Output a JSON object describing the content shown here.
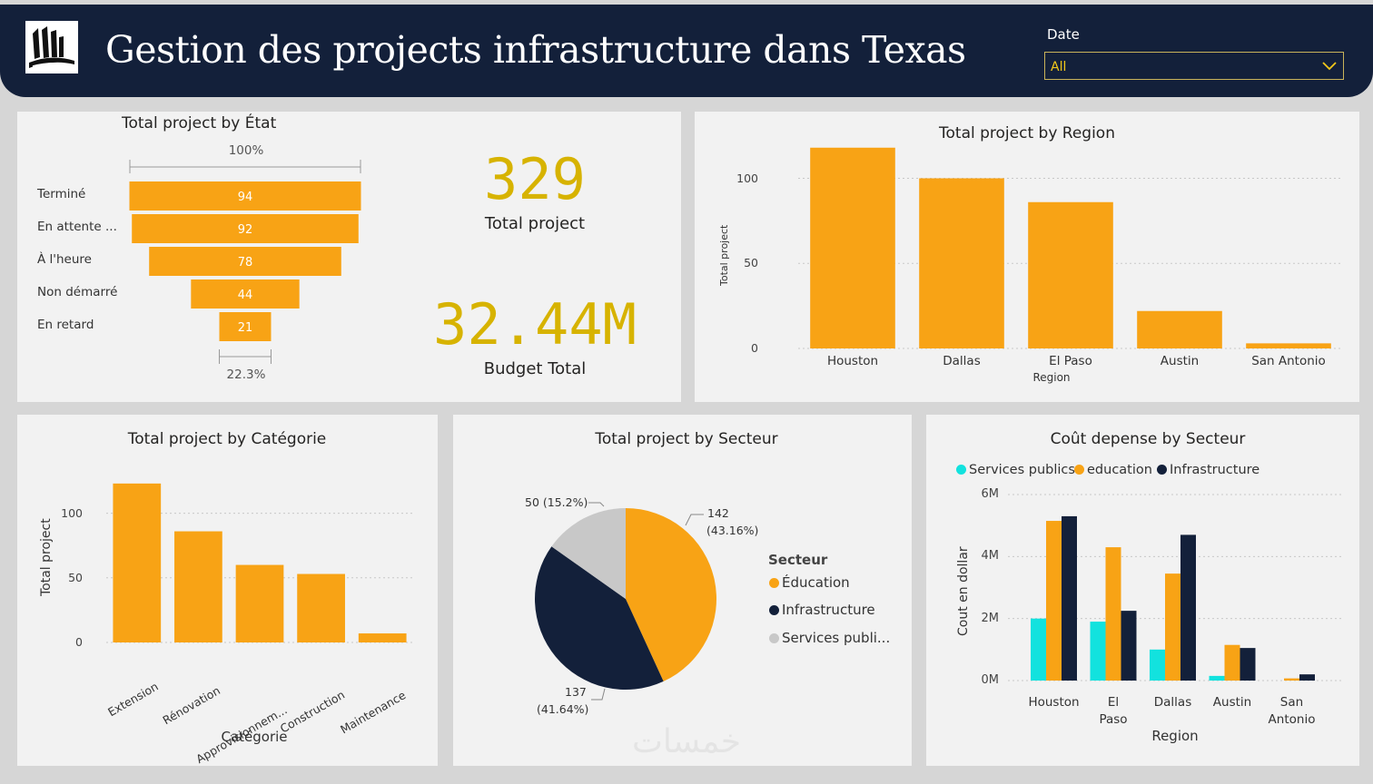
{
  "header": {
    "title": "Gestion des projects infrastructure dans Texas",
    "date_label": "Date",
    "date_value": "All"
  },
  "colors": {
    "orange": "#f8a315",
    "navy": "#13203a",
    "cyan": "#12e2de",
    "grey": "#c8c8c8",
    "kpi": "#d7b300"
  },
  "kpi": {
    "total_value": "329",
    "total_label": "Total project",
    "budget_value": "32.44M",
    "budget_label": "Budget Total"
  },
  "chart_data": [
    {
      "id": "etat",
      "type": "funnel",
      "title": "Total project by État",
      "top_percent": "100%",
      "bottom_percent": "22.3%",
      "categories": [
        "Terminé",
        "En attente ...",
        "À l'heure",
        "Non démarré",
        "En retard"
      ],
      "values": [
        94,
        92,
        78,
        44,
        21
      ]
    },
    {
      "id": "region",
      "type": "bar",
      "title": "Total project by Region",
      "xlabel": "Region",
      "ylabel": "Total project",
      "categories": [
        "Houston",
        "Dallas",
        "El Paso",
        "Austin",
        "San Antonio"
      ],
      "values": [
        118,
        100,
        86,
        22,
        3
      ],
      "yticks": [
        "0",
        "50",
        "100"
      ],
      "ylim": [
        0,
        120
      ]
    },
    {
      "id": "categorie",
      "type": "bar",
      "title": "Total project by Catégorie",
      "xlabel": "Catégorie",
      "ylabel": "Total project",
      "categories": [
        "Extension",
        "Rénovation",
        "Approvisionnem...",
        "Construction",
        "Maintenance"
      ],
      "values": [
        123,
        86,
        60,
        53,
        7
      ],
      "yticks": [
        "0",
        "50",
        "100"
      ],
      "ylim": [
        0,
        125
      ]
    },
    {
      "id": "secteur",
      "type": "pie",
      "title": "Total project by Secteur",
      "legend_title": "Secteur",
      "legend_items": [
        "Éducation",
        "Infrastructure",
        "Services publi..."
      ],
      "slices": [
        {
          "name": "Éducation",
          "value": 142,
          "label_value": "142",
          "label_pct": "(43.16%)"
        },
        {
          "name": "Infrastructure",
          "value": 137,
          "label_value": "137",
          "label_pct": "(41.64%)"
        },
        {
          "name": "Services publics",
          "value": 50,
          "label": "50 (15.2%)"
        }
      ]
    },
    {
      "id": "cout",
      "type": "bar",
      "title": "Coût depense by Secteur",
      "xlabel": "Region",
      "ylabel": "Cout en dollar",
      "categories": [
        "Houston",
        "El Paso",
        "Dallas",
        "Austin",
        "San Antonio"
      ],
      "legend": [
        "Services publics",
        "education",
        "Infrastructure"
      ],
      "series": [
        {
          "name": "Services publics",
          "values": [
            2.0,
            1.9,
            1.0,
            0.15,
            0
          ]
        },
        {
          "name": "education",
          "values": [
            5.15,
            4.3,
            3.45,
            1.15,
            0.07
          ]
        },
        {
          "name": "Infrastructure",
          "values": [
            5.3,
            2.25,
            4.7,
            1.05,
            0.2
          ]
        }
      ],
      "yticks": [
        "0M",
        "2M",
        "4M",
        "6M"
      ],
      "ylim": [
        0,
        6
      ]
    }
  ],
  "watermark": "خمسات"
}
